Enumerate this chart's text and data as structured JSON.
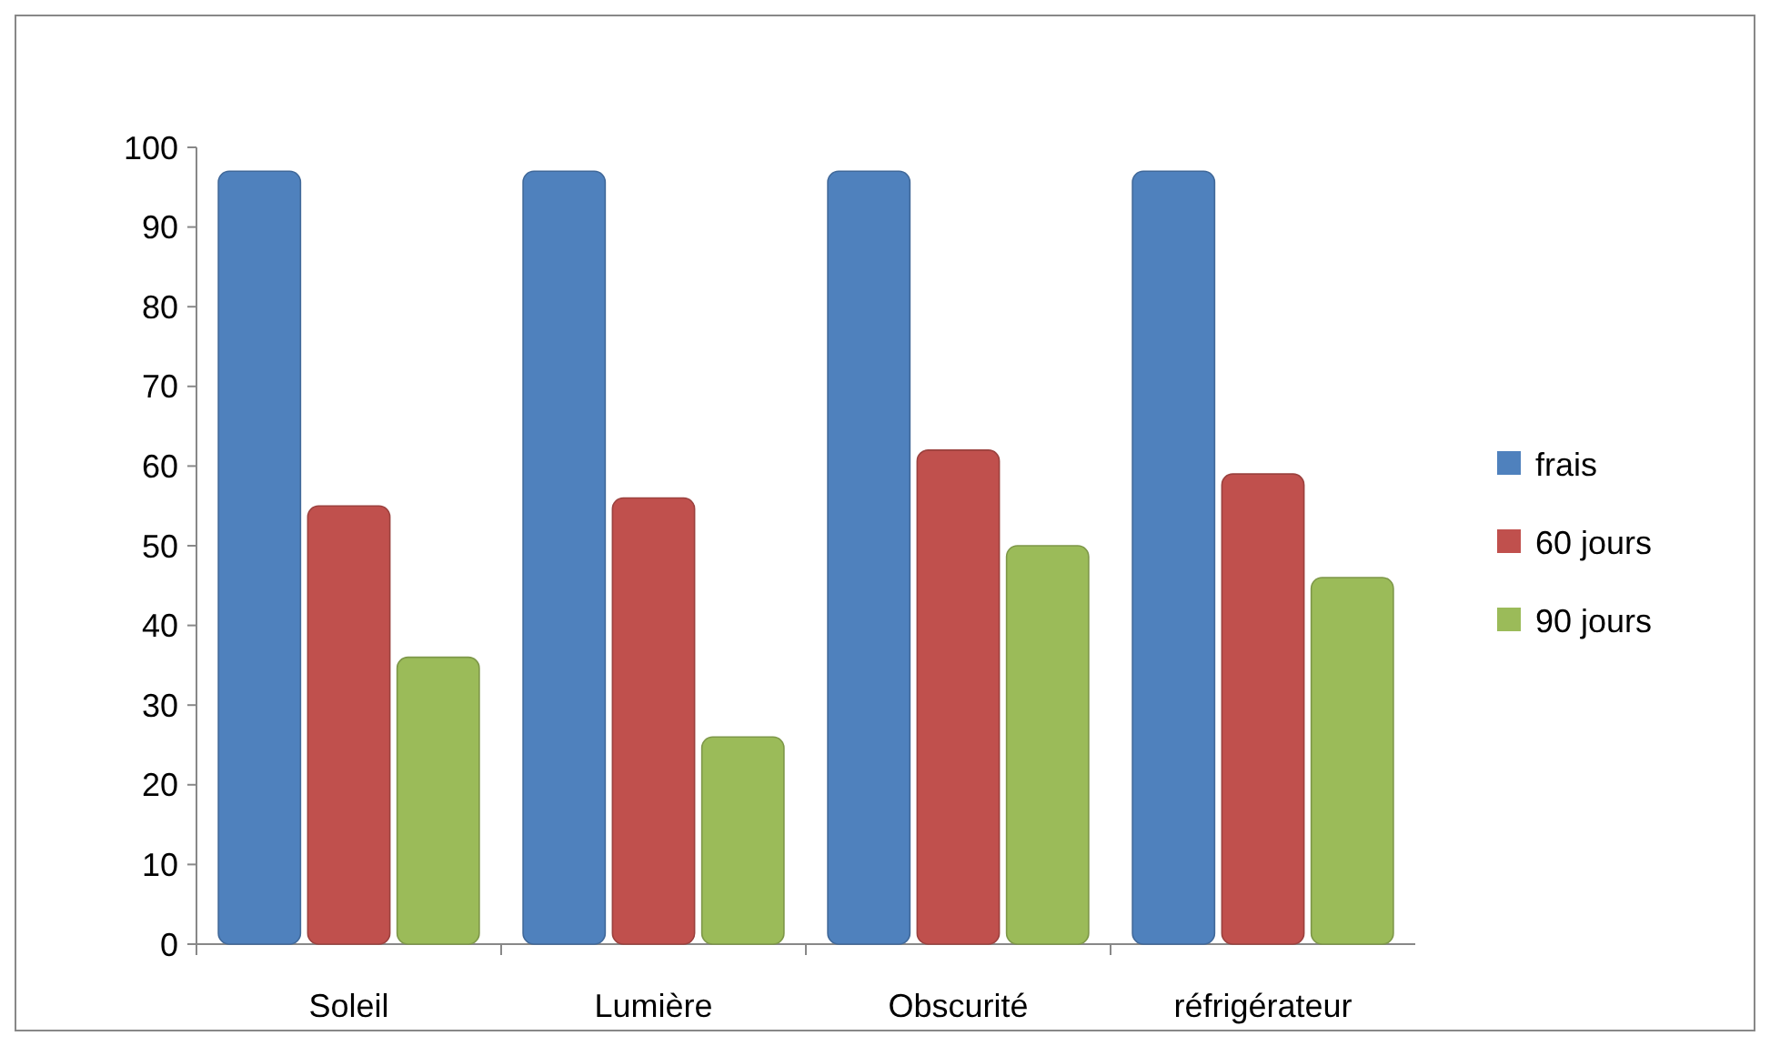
{
  "chart_data": {
    "type": "bar",
    "categories": [
      "Soleil",
      "Lumière",
      "Obscurité",
      "réfrigérateur"
    ],
    "series": [
      {
        "name": "frais",
        "color": "#4f81bd",
        "values": [
          97,
          97,
          97,
          97
        ]
      },
      {
        "name": "60 jours",
        "color": "#c0504d",
        "values": [
          55,
          56,
          62,
          59
        ]
      },
      {
        "name": "90 jours",
        "color": "#9bbb59",
        "values": [
          36,
          26,
          50,
          46
        ]
      }
    ],
    "ylim": [
      0,
      100
    ],
    "yticks": [
      0,
      10,
      20,
      30,
      40,
      50,
      60,
      70,
      80,
      90,
      100
    ],
    "grid": false,
    "legend": "right"
  }
}
